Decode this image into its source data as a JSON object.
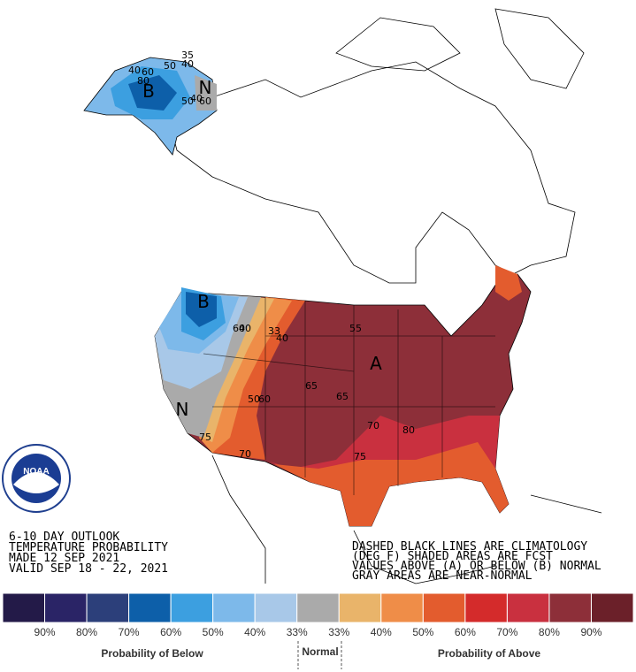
{
  "map": {
    "title_block": [
      "6-10 DAY OUTLOOK",
      "TEMPERATURE PROBABILITY",
      "MADE  12 SEP 2021",
      "VALID  SEP 18 - 22, 2021"
    ],
    "notes": [
      "DASHED BLACK LINES ARE CLIMATOLOGY",
      "(DEG F) SHADED AREAS ARE FCST",
      "VALUES ABOVE (A) OR BELOW (B) NORMAL",
      "GRAY AREAS ARE NEAR-NORMAL"
    ],
    "logo": "NOAA",
    "region_labels": [
      "B",
      "N",
      "B",
      "N",
      "A"
    ],
    "contour_labels": [
      "35",
      "40",
      "50",
      "60",
      "80",
      "40",
      "60",
      "50",
      "40",
      "33",
      "40",
      "50",
      "60",
      "55",
      "65",
      "65",
      "70",
      "75",
      "80",
      "75",
      "70",
      "60",
      "40"
    ],
    "legend": {
      "colors": [
        "#231a48",
        "#2a2466",
        "#2c3f7a",
        "#0d5fa9",
        "#3c9fe0",
        "#7db9ea",
        "#a8c8e8",
        "#aaaaaa",
        "#e9b46a",
        "#ef8d48",
        "#e35c2e",
        "#d42b2b",
        "#c9303f",
        "#8d2f39",
        "#6b2029"
      ],
      "labels": [
        "90%",
        "80%",
        "70%",
        "60%",
        "50%",
        "40%",
        "33%",
        "33%",
        "40%",
        "50%",
        "60%",
        "70%",
        "80%",
        "90%"
      ],
      "below": "Probability of Below",
      "normal": "Normal",
      "above": "Probability of Above"
    }
  }
}
